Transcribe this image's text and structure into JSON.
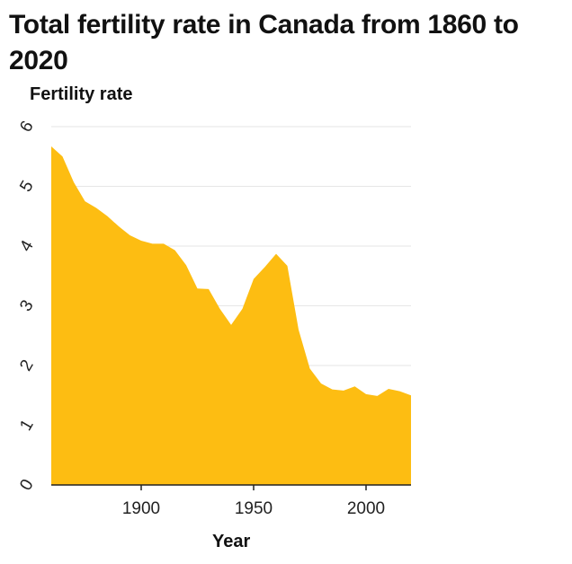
{
  "chart_data": {
    "type": "area",
    "title": "Total fertility rate in Canada from 1860 to 2020",
    "xlabel": "Year",
    "ylabel": "Fertility rate",
    "xlim": [
      1860,
      2020
    ],
    "ylim": [
      0,
      6
    ],
    "x_ticks": [
      1900,
      1950,
      2000
    ],
    "y_ticks": [
      0,
      1,
      2,
      3,
      4,
      5,
      6
    ],
    "grid": "horizontal",
    "legend": "none",
    "fill_color": "#FDBD12",
    "grid_color": "#e6e6e6",
    "axis_color": "#222222",
    "x": [
      1860,
      1865,
      1870,
      1875,
      1880,
      1885,
      1890,
      1895,
      1900,
      1905,
      1910,
      1915,
      1920,
      1925,
      1930,
      1935,
      1940,
      1945,
      1950,
      1955,
      1960,
      1965,
      1970,
      1975,
      1980,
      1985,
      1990,
      1995,
      2000,
      2005,
      2010,
      2015,
      2020
    ],
    "values": [
      5.67,
      5.5,
      5.07,
      4.75,
      4.64,
      4.5,
      4.33,
      4.18,
      4.09,
      4.04,
      4.04,
      3.93,
      3.68,
      3.29,
      3.28,
      2.95,
      2.68,
      2.95,
      3.45,
      3.65,
      3.87,
      3.67,
      2.6,
      1.95,
      1.7,
      1.6,
      1.58,
      1.65,
      1.52,
      1.49,
      1.61,
      1.57,
      1.5
    ]
  }
}
